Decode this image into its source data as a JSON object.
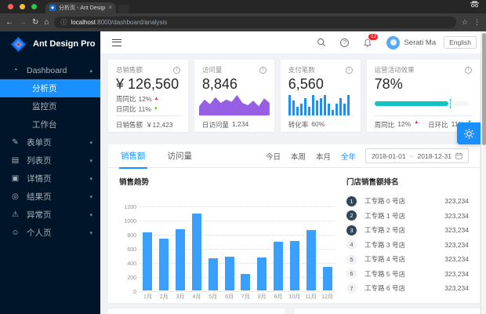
{
  "browser": {
    "tab_title": "分析页 - Ant Design Pro",
    "url_host": "localhost",
    "url_rest": ":8000/dashboard/analysis"
  },
  "icons": {
    "back": "←",
    "forward": "→",
    "reload": "↻",
    "home": "⌂",
    "info": "ⓘ",
    "star": "☆",
    "kebab": "⋮",
    "close": "×",
    "favicon_glyph": "◆",
    "up_arrow": "▲",
    "down_arrow": "▼"
  },
  "colors": {
    "primary": "#1890ff",
    "sidebar_bg": "#001529",
    "bar": "#3aa0ff",
    "area": "#975fe4",
    "progress": "#13c2c2",
    "up": "#f5222d",
    "down": "#52c41a",
    "badge": "#f5222d",
    "rank_badge": "#314659"
  },
  "sidebar": {
    "logo_text": "Ant Design Pro",
    "items": [
      {
        "label": "Dashboard",
        "icon": "dashboard-icon",
        "glyph": "◔",
        "chevron": "up"
      },
      {
        "label": "分析页",
        "sub": true,
        "selected": true
      },
      {
        "label": "监控页",
        "sub": true
      },
      {
        "label": "工作台",
        "sub": true
      },
      {
        "label": "表单页",
        "icon": "form-icon",
        "glyph": "✎",
        "chevron": "down"
      },
      {
        "label": "列表页",
        "icon": "table-icon",
        "glyph": "▤",
        "chevron": "down"
      },
      {
        "label": "详情页",
        "icon": "profile-icon",
        "glyph": "▣",
        "chevron": "down"
      },
      {
        "label": "结果页",
        "icon": "check-circle-icon",
        "glyph": "◎",
        "chevron": "down"
      },
      {
        "label": "异常页",
        "icon": "warning-icon",
        "glyph": "⚠",
        "chevron": "down"
      },
      {
        "label": "个人页",
        "icon": "user-icon",
        "glyph": "☺",
        "chevron": "down"
      }
    ]
  },
  "header": {
    "notification_count": "12",
    "user_name": "Serati Ma",
    "language_label": "English"
  },
  "stat_cards": [
    {
      "title": "总销售额",
      "value": "¥ 126,560",
      "trends": [
        {
          "label": "周同比",
          "value": "12%",
          "direction": "up"
        },
        {
          "label": "日同比",
          "value": "11%",
          "direction": "down"
        }
      ],
      "footer_label": "日销售额",
      "footer_value": "￥12,423"
    },
    {
      "title": "访问量",
      "value": "8,846",
      "footer_label": "日访问量",
      "footer_value": "1,234"
    },
    {
      "title": "支付笔数",
      "value": "6,560",
      "footer_label": "转化率",
      "footer_value": "60%"
    },
    {
      "title": "运营活动效果",
      "value": "78%",
      "progress_percent": 78,
      "target_percent": 80,
      "trends": [
        {
          "label": "周同比",
          "value": "12%",
          "direction": "up"
        },
        {
          "label": "日环比",
          "value": "11%",
          "direction": "down"
        }
      ]
    }
  ],
  "sales_panel": {
    "tabs": [
      {
        "label": "销售额",
        "active": true
      },
      {
        "label": "访问量",
        "active": false
      }
    ],
    "ranges": [
      {
        "label": "今日",
        "active": false
      },
      {
        "label": "本周",
        "active": false
      },
      {
        "label": "本月",
        "active": false
      },
      {
        "label": "全年",
        "active": true
      }
    ],
    "date_start": "2018-01-01",
    "date_separator": "~",
    "date_end": "2018-12-31",
    "chart_title": "销售趋势",
    "ranking_title": "门店销售额排名",
    "ranking": [
      {
        "rank": "1",
        "name": "工专路 0 号店",
        "value": "323,234"
      },
      {
        "rank": "2",
        "name": "工专路 1 号店",
        "value": "323,234"
      },
      {
        "rank": "3",
        "name": "工专路 2 号店",
        "value": "323,234"
      },
      {
        "rank": "4",
        "name": "工专路 3 号店",
        "value": "323,234"
      },
      {
        "rank": "5",
        "name": "工专路 4 号店",
        "value": "323,234"
      },
      {
        "rank": "6",
        "name": "工专路 5 号店",
        "value": "323,234"
      },
      {
        "rank": "7",
        "name": "工专路 6 号店",
        "value": "323,234"
      }
    ]
  },
  "chart_data": [
    {
      "type": "bar",
      "title": "销售趋势",
      "categories": [
        "1月",
        "2月",
        "3月",
        "4月",
        "5月",
        "6月",
        "7月",
        "8月",
        "9月",
        "10月",
        "11月",
        "12月"
      ],
      "values": [
        820,
        730,
        865,
        1090,
        455,
        475,
        230,
        470,
        690,
        695,
        860,
        330
      ],
      "xlabel": "",
      "ylabel": "",
      "ylim": [
        0,
        1200
      ],
      "yticks": [
        0,
        200,
        400,
        600,
        800,
        1000,
        1200
      ],
      "grid": "dotted-horizontal",
      "bar_color": "#3aa0ff"
    },
    {
      "type": "area",
      "title": "访问量趋势(迷你图)",
      "values": [
        8,
        14,
        10,
        16,
        11,
        14,
        12,
        18,
        11,
        9,
        13,
        8,
        15,
        11
      ],
      "color": "#975fe4"
    },
    {
      "type": "bar",
      "title": "支付笔数趋势(迷你图)",
      "values": [
        7,
        5,
        3,
        4,
        6,
        3,
        7,
        5,
        6,
        7,
        4,
        2,
        4,
        6,
        4,
        7
      ],
      "color": "#1890ff"
    }
  ]
}
